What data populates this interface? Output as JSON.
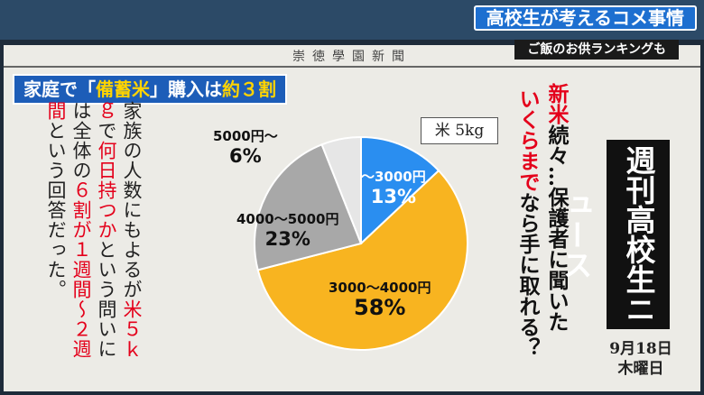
{
  "captions": {
    "main": "高校生が考えるコメ事情",
    "sub": "ご飯のお供ランキングも"
  },
  "newspaper": {
    "masthead": "崇徳學園新聞",
    "headline": {
      "pre": "家庭で「",
      "hl1": "備蓄米",
      "mid": "」購入は",
      "hl2": "約３割"
    }
  },
  "body_text": {
    "seg1": "家族の人数にもよるが",
    "seg2": "米５ｋｇ",
    "seg3": "で",
    "seg4": "何日持つか",
    "seg5": "という問いには",
    "seg6": "全体の",
    "seg7": "６割が１週間〜２週間",
    "seg8": "という回答だった。"
  },
  "chart_data": {
    "type": "pie",
    "title": "米 5kg",
    "slices": [
      {
        "name": "〜3000円",
        "value": 13,
        "label": "13%",
        "color": "#2a8ef0"
      },
      {
        "name": "3000〜4000円",
        "value": 58,
        "label": "58%",
        "color": "#f8b420"
      },
      {
        "name": "4000〜5000円",
        "value": 23,
        "label": "23%",
        "color": "#a8a8a8"
      },
      {
        "name": "5000円〜",
        "value": 6,
        "label": "6%",
        "color": "#e6e6e6"
      }
    ]
  },
  "question": {
    "l1a": "新米",
    "l1b": "続々…保護者に聞いた",
    "l2a": "いくらまで",
    "l2b": "なら手に取れる？"
  },
  "side": {
    "title": "週刊高校生ニュース",
    "date": "9月18日",
    "weekday": "木曜日"
  },
  "colors": {
    "accent_blue": "#1d5db8",
    "highlight_red": "#e4001b",
    "highlight_yellow": "#ffd400"
  }
}
